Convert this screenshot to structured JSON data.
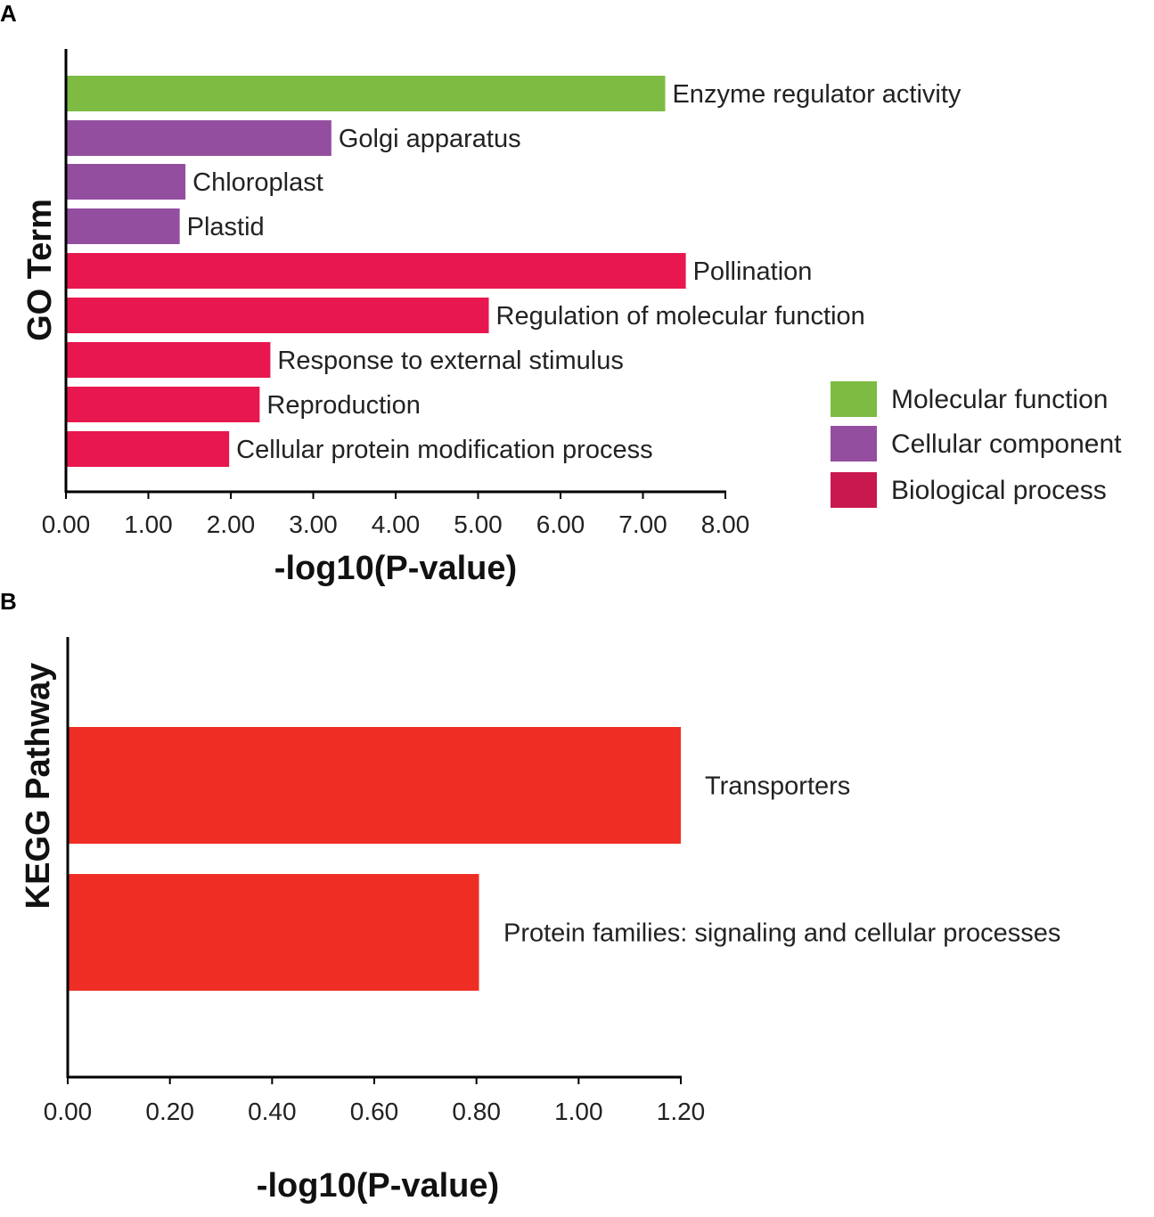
{
  "panels": {
    "a_letter": "A",
    "b_letter": "B"
  },
  "chart_data": [
    {
      "type": "bar",
      "orientation": "horizontal",
      "panel": "A",
      "ylabel": "GO Term",
      "xlabel": "-log10(P-value)",
      "xlim": [
        0,
        8
      ],
      "xticks": [
        "0.00",
        "1.00",
        "2.00",
        "3.00",
        "4.00",
        "5.00",
        "6.00",
        "7.00",
        "8.00"
      ],
      "xtick_values": [
        0,
        1,
        2,
        3,
        4,
        5,
        6,
        7,
        8
      ],
      "grid": false,
      "legend_position": "right",
      "legend": [
        {
          "name": "Molecular function",
          "color": "#7dbb42"
        },
        {
          "name": "Cellular component",
          "color": "#944ea0"
        },
        {
          "name": "Biological process",
          "color": "#c8184e"
        }
      ],
      "categories": [
        "Enzyme regulator activity",
        "Golgi apparatus",
        "Chloroplast",
        "Plastid",
        "Pollination",
        "Regulation of molecular function",
        "Response to external stimulus",
        "Reproduction",
        "Cellular protein modification process"
      ],
      "values": [
        7.27,
        3.22,
        1.45,
        1.38,
        7.52,
        5.13,
        2.48,
        2.35,
        1.98
      ],
      "groups": [
        "Molecular function",
        "Cellular component",
        "Cellular component",
        "Cellular component",
        "Biological process",
        "Biological process",
        "Biological process",
        "Biological process",
        "Biological process"
      ],
      "bar_colors": [
        "#7dbb42",
        "#944ea0",
        "#944ea0",
        "#944ea0",
        "#e8174f",
        "#e8174f",
        "#e8174f",
        "#e8174f",
        "#e8174f"
      ]
    },
    {
      "type": "bar",
      "orientation": "horizontal",
      "panel": "B",
      "ylabel": "KEGG Pathway",
      "xlabel": "-log10(P-value)",
      "xlim": [
        0,
        1.2
      ],
      "xticks": [
        "0.00",
        "0.20",
        "0.40",
        "0.60",
        "0.80",
        "1.00",
        "1.20"
      ],
      "xtick_values": [
        0,
        0.2,
        0.4,
        0.6,
        0.8,
        1.0,
        1.2
      ],
      "grid": false,
      "categories": [
        "Transporters",
        "Protein families: signaling and cellular processes"
      ],
      "values": [
        1.2,
        0.805
      ],
      "bar_color": "#ee2e24"
    }
  ]
}
